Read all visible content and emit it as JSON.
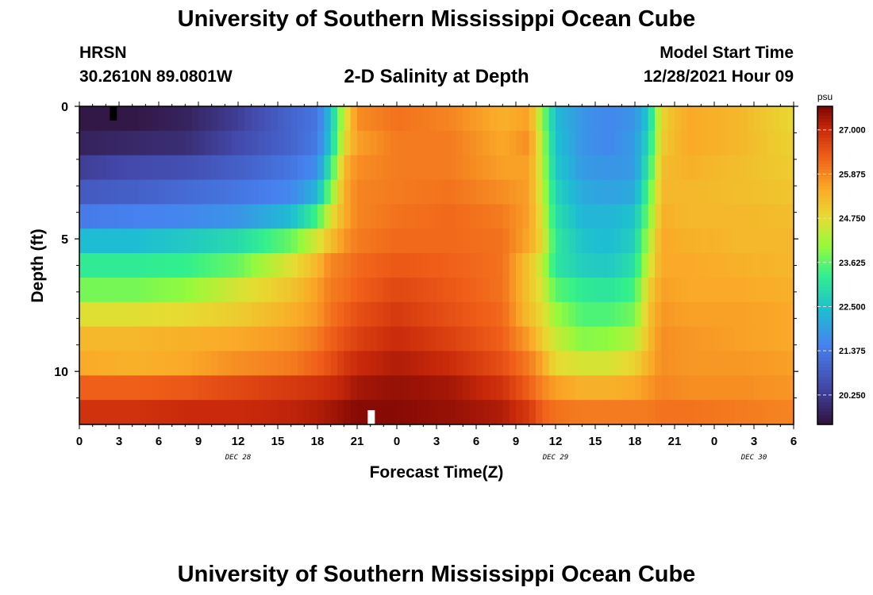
{
  "header": {
    "title": "University of Southern Mississippi Ocean Cube",
    "station": "HRSN",
    "coords": "30.2610N  89.0801W",
    "subtitle": "2-D Salinity at Depth",
    "model_label": "Model Start Time",
    "model_time": "12/28/2021 Hour 09"
  },
  "footer": {
    "title": "University of Southern Mississippi Ocean Cube"
  },
  "chart_data": {
    "type": "heatmap",
    "title": "2-D Salinity at Depth",
    "xlabel": "Forecast Time(Z)",
    "ylabel": "Depth (ft)",
    "x_start_hour": 0,
    "x_end_hour": 54,
    "x_ticks": [
      "0",
      "3",
      "6",
      "9",
      "12",
      "15",
      "18",
      "21",
      "0",
      "3",
      "6",
      "9",
      "12",
      "15",
      "18",
      "21",
      "0",
      "3",
      "6"
    ],
    "x_tick_hours": [
      0,
      3,
      6,
      9,
      12,
      15,
      18,
      21,
      24,
      27,
      30,
      33,
      36,
      39,
      42,
      45,
      48,
      51,
      54
    ],
    "day_labels": [
      {
        "text": "DEC 28",
        "hour": 12
      },
      {
        "text": "DEC 29",
        "hour": 36
      },
      {
        "text": "DEC 30",
        "hour": 51
      }
    ],
    "y_range": [
      0,
      12
    ],
    "y_tick_labels": [
      {
        "text": "0",
        "value": 0
      },
      {
        "text": "5",
        "value": 5
      },
      {
        "text": "10",
        "value": 10
      }
    ],
    "y_minor_ticks": [
      1,
      2,
      3,
      4,
      6,
      7,
      8,
      9,
      11
    ],
    "colorbar": {
      "unit": "psu",
      "min": 19.5,
      "max": 27.6,
      "ticks": [
        "27.000",
        "25.875",
        "24.750",
        "23.625",
        "22.500",
        "21.375",
        "20.250"
      ]
    },
    "depth_levels_ft": [
      0,
      1,
      2,
      3,
      4,
      5,
      6,
      7,
      8,
      9,
      10,
      11,
      12
    ],
    "profile_hours": [
      0,
      4,
      8,
      12,
      16,
      18,
      19,
      20,
      21,
      24,
      28,
      32,
      34,
      35,
      36,
      38,
      40,
      42,
      43,
      44,
      46,
      50,
      54
    ],
    "salinity_psu": [
      [
        19.6,
        19.6,
        19.8,
        20.3,
        21.0,
        21.3,
        22.5,
        24.5,
        25.8,
        26.1,
        25.9,
        25.4,
        25.6,
        24.0,
        22.4,
        21.8,
        21.6,
        21.8,
        22.6,
        24.9,
        25.5,
        25.3,
        24.8
      ],
      [
        19.8,
        19.9,
        20.0,
        20.5,
        21.0,
        21.4,
        22.6,
        24.8,
        25.6,
        26.0,
        26.0,
        25.5,
        25.8,
        24.2,
        22.5,
        21.8,
        21.6,
        21.9,
        22.8,
        25.0,
        25.5,
        25.3,
        24.9
      ],
      [
        20.3,
        20.5,
        20.6,
        20.9,
        21.3,
        21.7,
        23.2,
        25.3,
        25.8,
        26.0,
        26.0,
        25.6,
        25.6,
        24.3,
        22.6,
        21.9,
        21.8,
        21.9,
        23.1,
        25.2,
        25.4,
        25.2,
        25.0
      ],
      [
        20.8,
        20.9,
        21.1,
        21.3,
        21.6,
        22.3,
        23.9,
        25.4,
        25.9,
        26.0,
        26.1,
        25.8,
        25.6,
        24.4,
        22.8,
        22.1,
        22.0,
        22.1,
        23.5,
        25.3,
        25.3,
        25.2,
        25.1
      ],
      [
        21.4,
        21.5,
        21.6,
        21.8,
        22.4,
        23.4,
        24.7,
        25.4,
        25.9,
        26.1,
        26.2,
        26.0,
        25.6,
        24.6,
        23.0,
        22.3,
        22.3,
        22.5,
        23.8,
        25.4,
        25.3,
        25.3,
        25.2
      ],
      [
        22.4,
        22.4,
        22.6,
        22.9,
        23.7,
        24.6,
        25.2,
        25.7,
        26.0,
        26.2,
        26.2,
        26.1,
        25.5,
        24.8,
        23.2,
        22.5,
        22.4,
        22.7,
        24.2,
        25.5,
        25.4,
        25.3,
        25.3
      ],
      [
        23.2,
        23.2,
        23.3,
        23.7,
        24.7,
        25.3,
        25.9,
        26.0,
        26.2,
        26.4,
        26.3,
        26.1,
        25.1,
        24.4,
        23.1,
        22.7,
        22.6,
        23.0,
        24.5,
        25.5,
        25.5,
        25.4,
        25.3
      ],
      [
        23.8,
        23.8,
        24.0,
        24.6,
        25.1,
        25.6,
        26.0,
        26.1,
        26.3,
        26.6,
        26.4,
        26.1,
        25.1,
        24.6,
        23.6,
        23.2,
        23.1,
        23.4,
        24.9,
        25.6,
        25.5,
        25.5,
        25.4
      ],
      [
        24.7,
        24.7,
        24.8,
        25.0,
        25.4,
        25.7,
        26.1,
        26.3,
        26.5,
        26.8,
        26.5,
        26.2,
        25.2,
        24.8,
        24.1,
        23.5,
        23.5,
        23.8,
        25.1,
        25.7,
        25.6,
        25.6,
        25.5
      ],
      [
        25.3,
        25.3,
        25.4,
        25.5,
        25.7,
        26.0,
        26.3,
        26.5,
        26.7,
        27.0,
        26.7,
        26.3,
        25.6,
        25.0,
        24.5,
        23.9,
        24.0,
        24.3,
        25.2,
        25.8,
        25.7,
        25.6,
        25.5
      ],
      [
        25.5,
        25.4,
        25.5,
        25.8,
        26.0,
        26.3,
        26.5,
        26.8,
        27.0,
        27.2,
        27.0,
        26.5,
        26.0,
        25.5,
        24.8,
        24.6,
        24.6,
        24.9,
        25.4,
        25.8,
        25.7,
        25.7,
        25.6
      ],
      [
        26.3,
        26.3,
        26.4,
        26.6,
        26.8,
        26.9,
        27.0,
        27.1,
        27.3,
        27.4,
        27.3,
        26.9,
        26.3,
        25.9,
        25.6,
        25.4,
        25.4,
        25.5,
        25.7,
        25.9,
        25.8,
        25.8,
        25.7
      ],
      [
        26.9,
        26.9,
        27.0,
        27.0,
        27.1,
        27.2,
        27.3,
        27.4,
        27.5,
        27.5,
        27.4,
        27.2,
        26.8,
        26.3,
        26.1,
        26.0,
        26.0,
        26.0,
        26.0,
        26.1,
        26.1,
        26.0,
        25.9
      ]
    ]
  }
}
